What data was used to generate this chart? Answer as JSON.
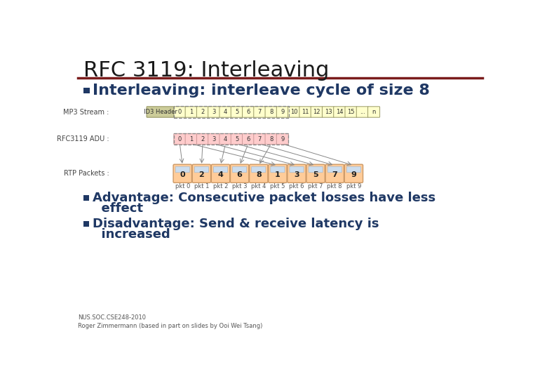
{
  "title": "RFC 3119: Interleaving",
  "title_color": "#1a1a1a",
  "title_fontsize": 22,
  "title_bold": false,
  "separator_color": "#7B1C1C",
  "bg_color": "#FFFFFF",
  "bullet_color": "#1F3864",
  "heading1": "Interleaving: interleave cycle of size 8",
  "heading1_fontsize": 16,
  "bullet1_line1": "Advantage: Consecutive packet losses have less",
  "bullet1_line2": "  effect",
  "bullet2_line1": "Disadvantage: Send & receive latency is",
  "bullet2_line2": "  increased",
  "bullet_fontsize": 13,
  "footer": "NUS.SOC.CSE248-2010\nRoger Zimmermann (based in part on slides by Ooi Wei Tsang)",
  "footer_fontsize": 6,
  "mp3_stream_label": "MP3 Stream :",
  "adu_label": "RFC3119 ADU :",
  "rtp_label": "RTP Packets :",
  "mp3_header_label": "ID3 Header",
  "mp3_numbers": [
    "0",
    "1",
    "2",
    "3",
    "4",
    "5",
    "6",
    "7",
    "8",
    "9",
    "10",
    "11",
    "12",
    "13",
    "14",
    "15",
    "...",
    "n"
  ],
  "adu_numbers": [
    "0",
    "1",
    "2",
    "3",
    "4",
    "5",
    "6",
    "7",
    "8",
    "9"
  ],
  "rtp_numbers": [
    "0",
    "2",
    "4",
    "6",
    "8",
    "1",
    "3",
    "5",
    "7",
    "9"
  ],
  "rtp_labels": [
    "pkt 0",
    "pkt 1",
    "pkt 2",
    "pkt 3",
    "pkt 4",
    "pkt 5",
    "pkt 6",
    "pkt 7",
    "pkt 8",
    "pkt 9"
  ],
  "mp3_bg": "#FFFFCC",
  "mp3_header_bg": "#CCCC99",
  "adu_bg": "#FFCCCC",
  "rtp_bg": "#FFCC99",
  "rtp_top_bg": "#CCDDEE",
  "mp3_border": "#999966",
  "adu_border": "#CC9999",
  "rtp_border": "#CC9966"
}
